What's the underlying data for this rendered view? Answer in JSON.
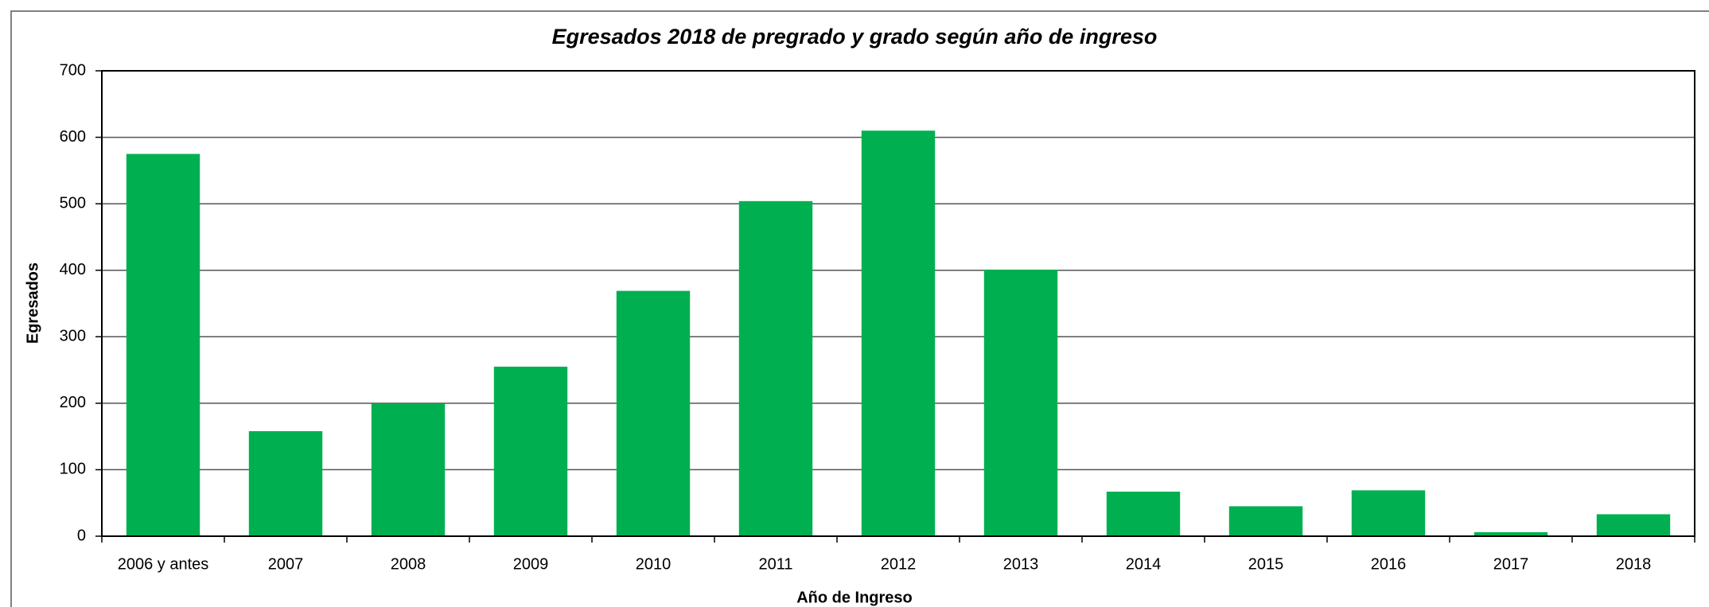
{
  "chart_data": {
    "type": "bar",
    "title": "Egresados 2018 de pregrado y grado según año de ingreso",
    "x_label": "Año de Ingreso",
    "y_label": "Egresados",
    "categories": [
      "2006 y antes",
      "2007",
      "2008",
      "2009",
      "2010",
      "2011",
      "2012",
      "2013",
      "2014",
      "2015",
      "2016",
      "2017",
      "2018"
    ],
    "values": [
      575,
      158,
      200,
      255,
      369,
      504,
      610,
      401,
      67,
      45,
      69,
      6,
      33
    ],
    "color": "#00b050",
    "ylim": [
      0,
      700
    ],
    "yticks": [
      0,
      100,
      200,
      300,
      400,
      500,
      600,
      700
    ],
    "grid": true
  }
}
